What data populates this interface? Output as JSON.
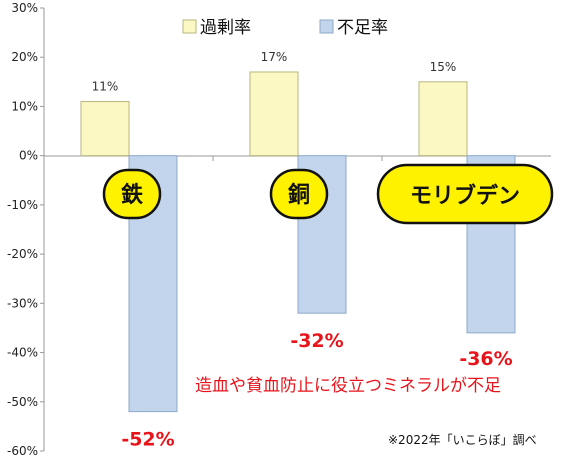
{
  "chart_data": {
    "type": "bar",
    "categories": [
      "鉄",
      "銅",
      "モリブデン"
    ],
    "series": [
      {
        "name": "過剰率",
        "values": [
          11,
          17,
          15
        ],
        "color": "#fbf8c4",
        "stroke": "#b9b67e"
      },
      {
        "name": "不足率",
        "values": [
          -52,
          -32,
          -36
        ],
        "color": "#c2d5ec",
        "stroke": "#8ea9c8"
      }
    ],
    "ylim": [
      -60,
      30
    ],
    "yticks": [
      "30%",
      "20%",
      "10%",
      "0%",
      "-10%",
      "-20%",
      "-30%",
      "-40%",
      "-50%",
      "-60%"
    ],
    "excess_labels": [
      "11%",
      "17%",
      "15%"
    ],
    "shortage_labels": [
      "-52%",
      "-32%",
      "-36%"
    ],
    "legend_position": "top",
    "grid": false,
    "annotation": "造血や貧血防止に役立つミネラルが不足",
    "source_note": "※2022年「いこらぼ」調べ",
    "label_color": "#fff200",
    "highlight_color": "#e8141b"
  }
}
